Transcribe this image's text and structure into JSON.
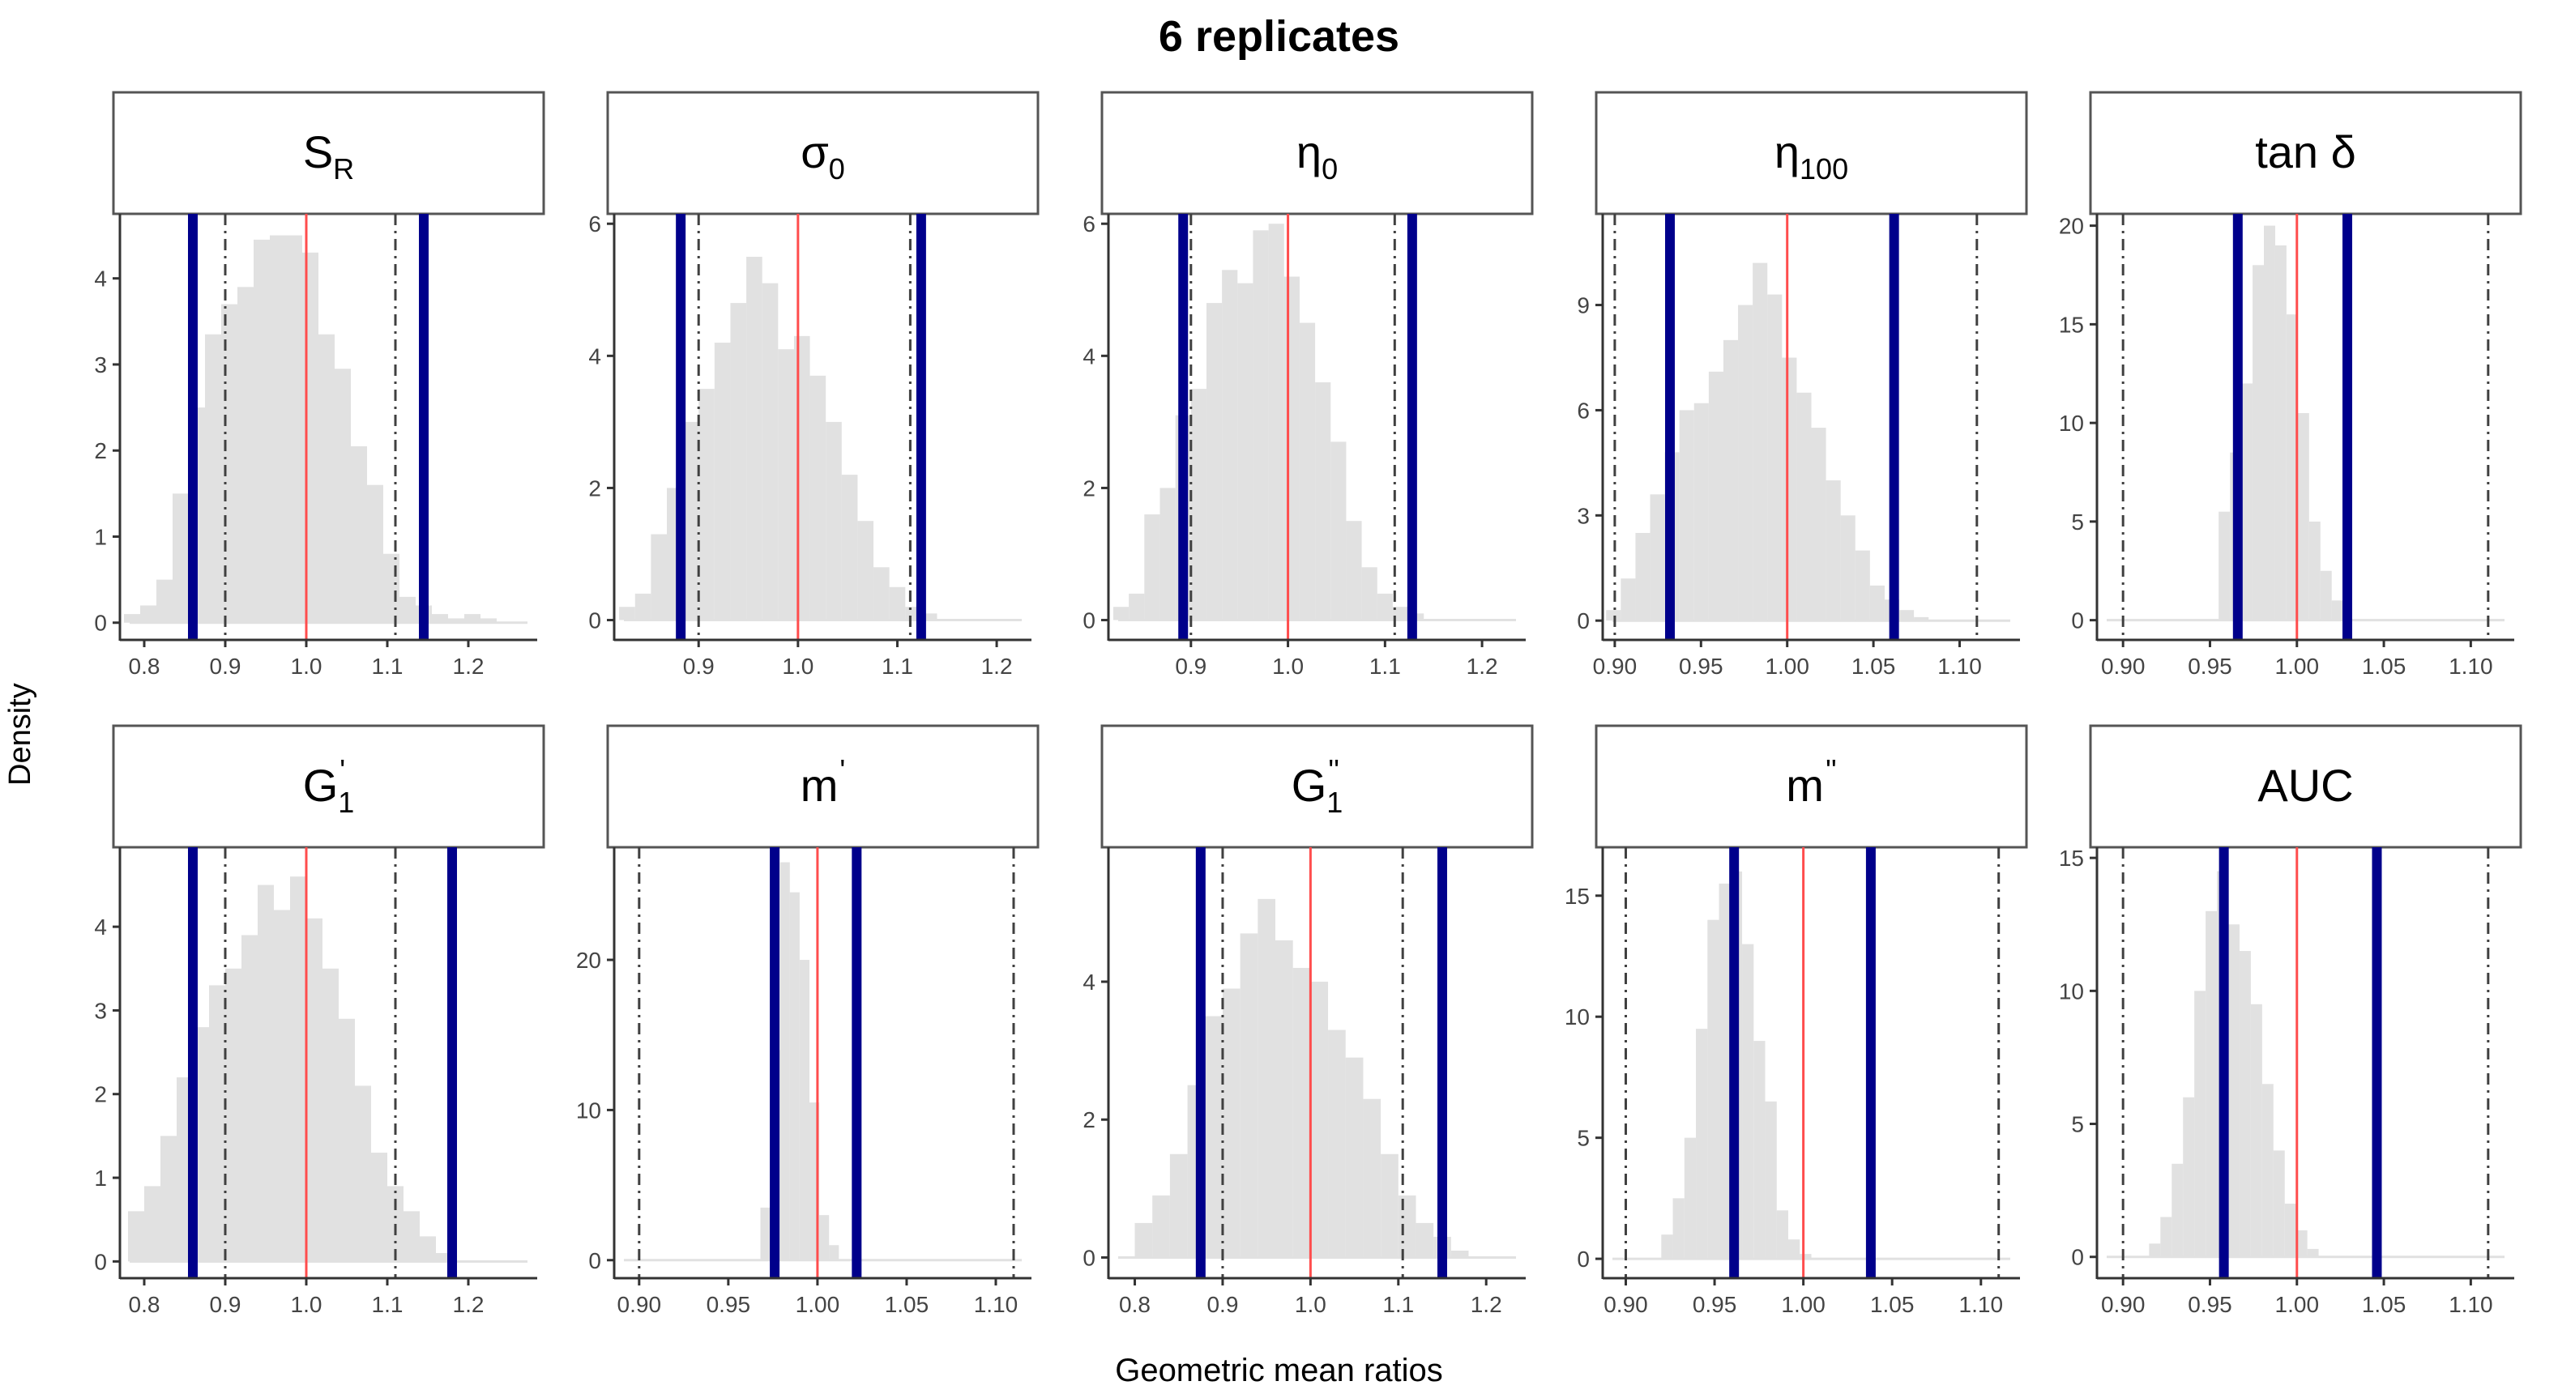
{
  "title": "6 replicates",
  "xlabel": "Geometric mean ratios",
  "ylabel": "Density",
  "colors": {
    "bar": "#e1e1e1",
    "ci_line": "#00008b",
    "center_line": "#ff4d4d",
    "limit_line": "#404040",
    "axis": "#333333",
    "strip_border": "#555555"
  },
  "chart_data": [
    {
      "panel": "S_R",
      "strip_main": "S",
      "strip_sub": "R",
      "strip_sub_type": "subscript",
      "type": "histogram",
      "xlim": [
        0.77,
        1.285
      ],
      "ylim": [
        -0.2,
        4.75
      ],
      "xticks": [
        0.8,
        0.9,
        1.0,
        1.1,
        1.2
      ],
      "xtick_labels": [
        "0.8",
        "0.9",
        "1.0",
        "1.1",
        "1.2"
      ],
      "yticks": [
        0,
        1,
        2,
        3,
        4
      ],
      "ytick_labels": [
        "0",
        "1",
        "2",
        "3",
        "4"
      ],
      "bin_start": 0.775,
      "bin_width": 0.02,
      "density": [
        0.1,
        0.2,
        0.5,
        1.5,
        2.5,
        3.35,
        3.7,
        3.9,
        4.45,
        4.5,
        4.5,
        4.3,
        3.35,
        2.95,
        2.05,
        1.6,
        0.8,
        0.3,
        0.2,
        0.1,
        0.05,
        0.1,
        0.05
      ],
      "ci": [
        0.86,
        1.145
      ],
      "center": 1.0,
      "limits": [
        0.9,
        1.11
      ]
    },
    {
      "panel": "sigma_0",
      "strip_main": "σ",
      "strip_sub": "0",
      "strip_sub_type": "subscript",
      "type": "histogram",
      "xlim": [
        0.815,
        1.235
      ],
      "ylim": [
        -0.3,
        6.15
      ],
      "xticks": [
        0.9,
        1.0,
        1.1,
        1.2
      ],
      "xtick_labels": [
        "0.9",
        "1.0",
        "1.1",
        "1.2"
      ],
      "yticks": [
        0,
        2,
        4,
        6
      ],
      "ytick_labels": [
        "0",
        "2",
        "4",
        "6"
      ],
      "bin_start": 0.82,
      "bin_width": 0.016,
      "density": [
        0.2,
        0.4,
        1.3,
        2.0,
        3.0,
        3.5,
        4.2,
        4.8,
        5.5,
        5.1,
        4.1,
        4.3,
        3.7,
        3.0,
        2.2,
        1.5,
        0.8,
        0.5,
        0.2,
        0.1
      ],
      "ci": [
        0.882,
        1.124
      ],
      "center": 1.0,
      "limits": [
        0.9,
        1.113
      ]
    },
    {
      "panel": "eta_0",
      "strip_main": "η",
      "strip_sub": "0",
      "strip_sub_type": "subscript",
      "type": "histogram",
      "xlim": [
        0.815,
        1.245
      ],
      "ylim": [
        -0.3,
        6.15
      ],
      "xticks": [
        0.9,
        1.0,
        1.1,
        1.2
      ],
      "xtick_labels": [
        "0.9",
        "1.0",
        "1.1",
        "1.2"
      ],
      "yticks": [
        0,
        2,
        4,
        6
      ],
      "ytick_labels": [
        "0",
        "2",
        "4",
        "6"
      ],
      "bin_start": 0.82,
      "bin_width": 0.016,
      "density": [
        0.2,
        0.4,
        1.6,
        2.0,
        3.1,
        3.5,
        4.8,
        5.3,
        5.1,
        5.9,
        6.0,
        5.2,
        4.5,
        3.6,
        2.7,
        1.5,
        0.8,
        0.4,
        0.2,
        0.1
      ],
      "ci": [
        0.892,
        1.128
      ],
      "center": 1.0,
      "limits": [
        0.9,
        1.11
      ]
    },
    {
      "panel": "eta_100",
      "strip_main": "η",
      "strip_sub": "100",
      "strip_sub_type": "subscript",
      "type": "histogram",
      "xlim": [
        0.893,
        1.135
      ],
      "ylim": [
        -0.55,
        11.6
      ],
      "xticks": [
        0.9,
        0.95,
        1.0,
        1.05,
        1.1
      ],
      "xtick_labels": [
        "0.90",
        "0.95",
        "1.00",
        "1.05",
        "1.10"
      ],
      "yticks": [
        0,
        3,
        6,
        9
      ],
      "ytick_labels": [
        "0",
        "3",
        "6",
        "9"
      ],
      "bin_start": 0.895,
      "bin_width": 0.0085,
      "density": [
        0.3,
        1.2,
        2.5,
        3.6,
        4.8,
        6.0,
        6.2,
        7.1,
        8.0,
        9.0,
        10.2,
        9.3,
        7.5,
        6.5,
        5.5,
        4.0,
        3.0,
        2.0,
        1.0,
        0.6,
        0.3,
        0.1
      ],
      "ci": [
        0.932,
        1.062
      ],
      "center": 1.0,
      "limits": [
        0.9,
        1.11
      ]
    },
    {
      "panel": "tan_delta",
      "strip_main": "tan δ",
      "strip_sub": "",
      "strip_sub_type": "none",
      "type": "histogram",
      "xlim": [
        0.885,
        1.125
      ],
      "ylim": [
        -1.0,
        20.6
      ],
      "xticks": [
        0.9,
        0.95,
        1.0,
        1.05,
        1.1
      ],
      "xtick_labels": [
        "0.90",
        "0.95",
        "1.00",
        "1.05",
        "1.10"
      ],
      "yticks": [
        0,
        5,
        10,
        15,
        20
      ],
      "ytick_labels": [
        "0",
        "5",
        "10",
        "15",
        "20"
      ],
      "bin_start": 0.955,
      "bin_width": 0.0065,
      "density": [
        5.5,
        8.5,
        12.0,
        18.0,
        20.0,
        19.0,
        15.5,
        10.5,
        5.0,
        2.5,
        1.0
      ],
      "ci": [
        0.966,
        1.029
      ],
      "center": 1.0,
      "limits": [
        0.9,
        1.11
      ]
    },
    {
      "panel": "G1_prime",
      "strip_main": "G",
      "strip_sub": "1",
      "strip_sup": "'",
      "strip_sub_type": "subsup",
      "type": "histogram",
      "xlim": [
        0.77,
        1.285
      ],
      "ylim": [
        -0.2,
        4.95
      ],
      "xticks": [
        0.8,
        0.9,
        1.0,
        1.1,
        1.2
      ],
      "xtick_labels": [
        "0.8",
        "0.9",
        "1.0",
        "1.1",
        "1.2"
      ],
      "yticks": [
        0,
        1,
        2,
        3,
        4
      ],
      "ytick_labels": [
        "0",
        "1",
        "2",
        "3",
        "4"
      ],
      "bin_start": 0.78,
      "bin_width": 0.02,
      "density": [
        0.6,
        0.9,
        1.5,
        2.2,
        2.8,
        3.3,
        3.5,
        3.9,
        4.5,
        4.2,
        4.6,
        4.1,
        3.5,
        2.9,
        2.1,
        1.3,
        0.9,
        0.6,
        0.3,
        0.1
      ],
      "ci": [
        0.86,
        1.18
      ],
      "center": 1.0,
      "limits": [
        0.9,
        1.11
      ]
    },
    {
      "panel": "m_prime",
      "strip_main": "m",
      "strip_sub": "",
      "strip_sup": "'",
      "strip_sub_type": "sup",
      "type": "histogram",
      "xlim": [
        0.886,
        1.12
      ],
      "ylim": [
        -1.2,
        27.5
      ],
      "xticks": [
        0.9,
        0.95,
        1.0,
        1.05,
        1.1
      ],
      "xtick_labels": [
        "0.90",
        "0.95",
        "1.00",
        "1.05",
        "1.10"
      ],
      "yticks": [
        0,
        10,
        20
      ],
      "ytick_labels": [
        "0",
        "10",
        "20"
      ],
      "bin_start": 0.968,
      "bin_width": 0.0055,
      "density": [
        3.5,
        14.0,
        26.5,
        24.5,
        20.0,
        10.5,
        3.0,
        1.0
      ],
      "ci": [
        0.976,
        1.022
      ],
      "center": 1.0,
      "limits": [
        0.9,
        1.11
      ]
    },
    {
      "panel": "G1_double_prime",
      "strip_main": "G",
      "strip_sub": "1",
      "strip_sup": "''",
      "strip_sub_type": "subsup",
      "type": "histogram",
      "xlim": [
        0.77,
        1.245
      ],
      "ylim": [
        -0.3,
        5.95
      ],
      "xticks": [
        0.8,
        0.9,
        1.0,
        1.1,
        1.2
      ],
      "xtick_labels": [
        "0.8",
        "0.9",
        "1.0",
        "1.1",
        "1.2"
      ],
      "yticks": [
        0,
        2,
        4
      ],
      "ytick_labels": [
        "0",
        "2",
        "4"
      ],
      "bin_start": 0.8,
      "bin_width": 0.02,
      "density": [
        0.5,
        0.9,
        1.5,
        2.5,
        3.5,
        3.9,
        4.7,
        5.2,
        4.6,
        4.2,
        4.0,
        3.3,
        2.9,
        2.3,
        1.5,
        0.9,
        0.5,
        0.3,
        0.1
      ],
      "ci": [
        0.875,
        1.15
      ],
      "center": 1.0,
      "limits": [
        0.9,
        1.105
      ]
    },
    {
      "panel": "m_double_prime",
      "strip_main": "m",
      "strip_sub": "",
      "strip_sup": "''",
      "strip_sub_type": "sup",
      "type": "histogram",
      "xlim": [
        0.887,
        1.122
      ],
      "ylim": [
        -0.8,
        17.0
      ],
      "xticks": [
        0.9,
        0.95,
        1.0,
        1.05,
        1.1
      ],
      "xtick_labels": [
        "0.90",
        "0.95",
        "1.00",
        "1.05",
        "1.10"
      ],
      "yticks": [
        0,
        5,
        10,
        15
      ],
      "ytick_labels": [
        "0",
        "5",
        "10",
        "15"
      ],
      "bin_start": 0.92,
      "bin_width": 0.0065,
      "density": [
        1.0,
        2.5,
        5.0,
        9.5,
        14.0,
        15.5,
        16.0,
        13.0,
        9.0,
        6.5,
        2.0,
        0.8,
        0.2
      ],
      "ci": [
        0.961,
        1.038
      ],
      "center": 1.0,
      "limits": [
        0.9,
        1.11
      ]
    },
    {
      "panel": "AUC",
      "strip_main": "AUC",
      "strip_sub": "",
      "strip_sub_type": "none",
      "type": "histogram",
      "xlim": [
        0.885,
        1.125
      ],
      "ylim": [
        -0.8,
        15.4
      ],
      "xticks": [
        0.9,
        0.95,
        1.0,
        1.05,
        1.1
      ],
      "xtick_labels": [
        "0.90",
        "0.95",
        "1.00",
        "1.05",
        "1.10"
      ],
      "yticks": [
        0,
        5,
        10,
        15
      ],
      "ytick_labels": [
        "0",
        "5",
        "10",
        "15"
      ],
      "bin_start": 0.915,
      "bin_width": 0.0065,
      "density": [
        0.5,
        1.5,
        3.5,
        6.0,
        10.0,
        13.0,
        14.5,
        12.5,
        11.5,
        9.5,
        6.5,
        4.0,
        2.0,
        1.0,
        0.3
      ],
      "ci": [
        0.958,
        1.046
      ],
      "center": 1.0,
      "limits": [
        0.9,
        1.11
      ]
    }
  ]
}
